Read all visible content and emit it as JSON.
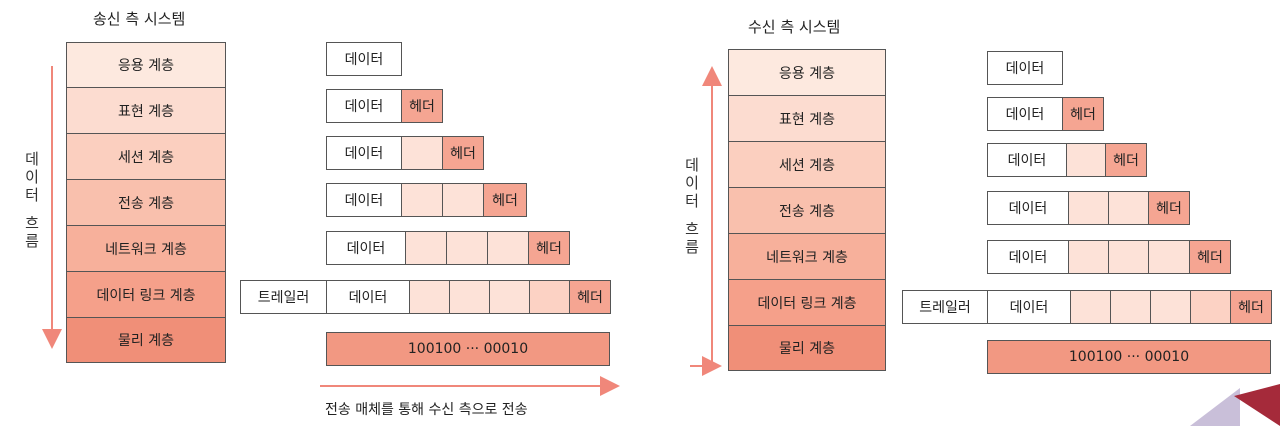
{
  "colors": {
    "layer_shades": [
      "#fde9df",
      "#fcdcd0",
      "#fbcfbf",
      "#f9c0ad",
      "#f7b09b",
      "#f5a08a",
      "#f08f78"
    ],
    "arrow": "#f0877a",
    "bits_fill": "#f29882",
    "header_fill": "#f5a592",
    "padding_fill": "#fde2d8"
  },
  "sender": {
    "title": "송신 측 시스템",
    "flow_label": [
      "데",
      "이",
      "터",
      "흐",
      "름"
    ],
    "layers": [
      "응용 계층",
      "표현 계층",
      "세션 계층",
      "전송 계층",
      "네트워크 계층",
      "데이터 링크 계층",
      "물리 계층"
    ]
  },
  "receiver": {
    "title": "수신 측 시스템",
    "flow_label": [
      "데",
      "이",
      "터",
      "흐",
      "름"
    ],
    "layers": [
      "응용 계층",
      "표현 계층",
      "세션 계층",
      "전송 계층",
      "네트워크 계층",
      "데이터 링크 계층",
      "물리 계층"
    ]
  },
  "packet": {
    "data_label": "데이터",
    "header_label": "헤더",
    "trailer_label": "트레일러",
    "bits": "100100 ··· 00010"
  },
  "transmission_caption": "전송 매체를 통해 수신 측으로 전송"
}
